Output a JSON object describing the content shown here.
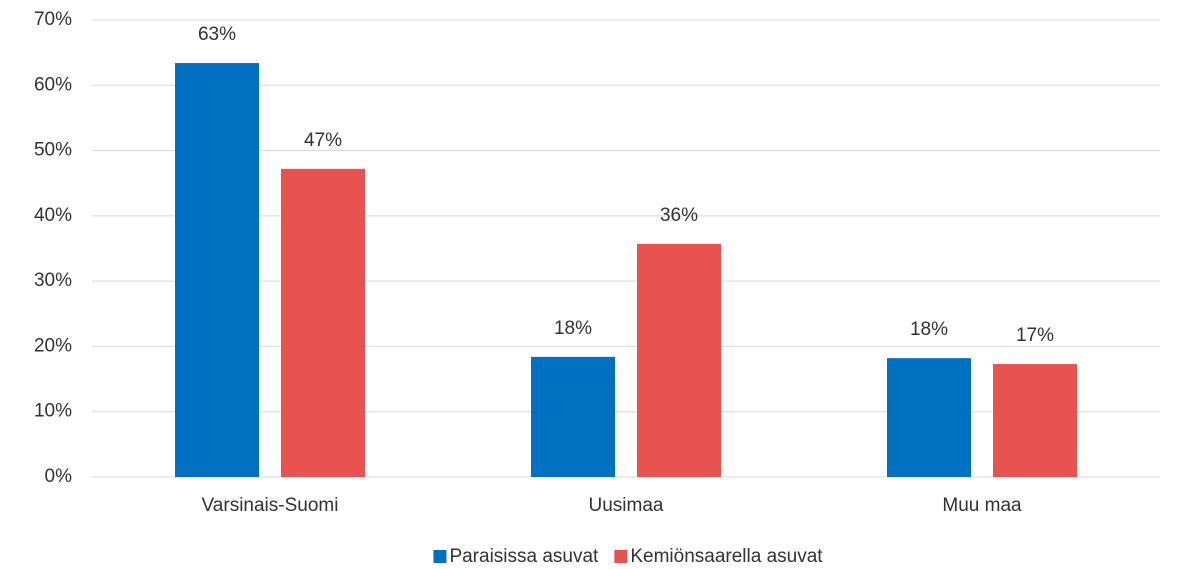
{
  "chart_data": {
    "type": "bar",
    "categories": [
      "Varsinais-Suomi",
      "Uusimaa",
      "Muu maa"
    ],
    "series": [
      {
        "name": "Paraisissa asuvat",
        "color": "#0070c0",
        "values": [
          63.4,
          18.4,
          18.2
        ],
        "value_labels": [
          "63%",
          "18%",
          "18%"
        ]
      },
      {
        "name": "Kemiönsaarella asuvat",
        "color": "#e8534f",
        "values": [
          47.2,
          35.7,
          17.3
        ],
        "value_labels": [
          "47%",
          "36%",
          "17%"
        ]
      }
    ],
    "ylim": [
      0,
      70
    ],
    "yticks": [
      {
        "value": 0,
        "label": "0%"
      },
      {
        "value": 10,
        "label": "10%"
      },
      {
        "value": 20,
        "label": "20%"
      },
      {
        "value": 30,
        "label": "30%"
      },
      {
        "value": 40,
        "label": "40%"
      },
      {
        "value": 50,
        "label": "50%"
      },
      {
        "value": 60,
        "label": "60%"
      },
      {
        "value": 70,
        "label": "70%"
      }
    ],
    "grid": true,
    "legend": "bottom"
  }
}
